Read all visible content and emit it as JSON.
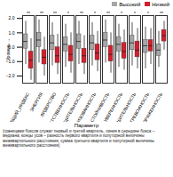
{
  "chart_data": {
    "type": "boxplot",
    "y_label": "Уровень",
    "x_label": "Параметр",
    "caption": "(границами боксов служат первый и третий квартиль, линия в середине бокса – медиана; концы усов – разность первого квартиля и полуторной величины межквартильного расстояния, сумма третьего квартиля и полуторной величины межквартильного расстояния)",
    "legend": "top-right",
    "categories": [
      "ОБЩИЙ_ИНДЕКС",
      "ЭНЕРГИЯ",
      "ЛИДЕРСТВО",
      "ОТВЕТСТВЕННОСТЬ",
      "ОБЩИТЕЛЬНОСТЬ",
      "ОРГАНИЗОВАННОСТЬ",
      "НАСТОЙЧИВОСТЬ",
      "УВЕРЕННОСТЬ",
      "РЕШИТЕЛЬНОСТЬ",
      "ТРЕВОЖНОСТЬ",
      "НАПРЯЖЕННОСТЬ"
    ],
    "significance": [
      "**",
      "**",
      "**",
      "*",
      "**",
      "*",
      "**",
      "*",
      "*",
      "*",
      "**"
    ],
    "ylim": [
      -2.5,
      2.2
    ],
    "yticks": [
      -2,
      -1,
      0,
      1,
      2
    ],
    "series": [
      {
        "name": "Высокий",
        "color": "#a6a6a6",
        "whisker_low": [
          -1.2,
          -1.1,
          -1.3,
          -1.4,
          -1.2,
          -1.3,
          -1.1,
          -1.4,
          -1.3,
          -1.5,
          -1.4
        ],
        "q1": [
          -0.1,
          0,
          -0.2,
          -0.3,
          -0.1,
          -0.2,
          0,
          -0.3,
          -0.2,
          -0.4,
          -0.6
        ],
        "median": [
          0.4,
          0.5,
          0.3,
          0.2,
          0.4,
          0.3,
          0.5,
          0.2,
          0.3,
          0.1,
          -0.2
        ],
        "q3": [
          0.9,
          1.0,
          0.8,
          0.7,
          0.9,
          0.8,
          1.0,
          0.7,
          0.8,
          0.5,
          0.2
        ],
        "whisker_high": [
          1.8,
          1.9,
          1.7,
          1.6,
          1.8,
          1.7,
          1.9,
          1.6,
          1.7,
          1.4,
          1.1
        ]
      },
      {
        "name": "Низкий",
        "color": "#d0202e",
        "whisker_low": [
          -2.3,
          -2.0,
          -1.9,
          -1.8,
          -1.9,
          -1.7,
          -1.8,
          -1.6,
          -1.5,
          -1.2,
          -0.2
        ],
        "q1": [
          -1.5,
          -1.2,
          -1.1,
          -1.0,
          -1.1,
          -0.9,
          -1.0,
          -0.8,
          -0.7,
          -0.3,
          0.4
        ],
        "median": [
          -0.9,
          -0.7,
          -0.6,
          -0.5,
          -0.6,
          -0.4,
          -0.5,
          -0.3,
          -0.2,
          0.1,
          0.8
        ],
        "q3": [
          -0.3,
          -0.2,
          0,
          0.1,
          -0.1,
          0.2,
          0.1,
          0.3,
          0.4,
          0.5,
          1.2
        ],
        "whisker_high": [
          0.6,
          0.7,
          0.9,
          1.0,
          0.8,
          1.1,
          1.0,
          1.2,
          1.3,
          1.3,
          1.8
        ]
      }
    ]
  }
}
